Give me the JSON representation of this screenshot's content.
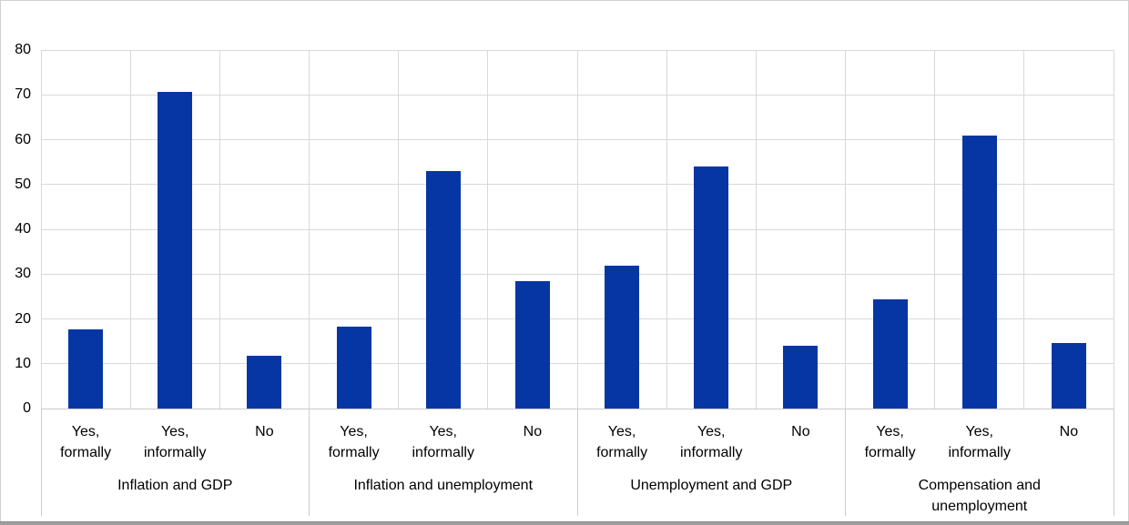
{
  "chart_data": {
    "type": "bar",
    "title": "",
    "legend": null,
    "grid": true,
    "ylim": [
      0,
      80
    ],
    "ytick_step": 10,
    "ytick_labels": [
      "0",
      "10",
      "20",
      "30",
      "40",
      "50",
      "60",
      "70",
      "80"
    ],
    "categories_per_group": [
      [
        "Yes,",
        "formally"
      ],
      [
        "Yes,",
        "informally"
      ],
      [
        "No"
      ]
    ],
    "groups": [
      {
        "label_lines": [
          "Inflation and GDP"
        ],
        "values": [
          17.6,
          70.6,
          11.8
        ]
      },
      {
        "label_lines": [
          "Inflation and unemployment"
        ],
        "values": [
          18.3,
          52.9,
          28.5
        ]
      },
      {
        "label_lines": [
          "Unemployment and GDP"
        ],
        "values": [
          31.9,
          54.1,
          14.0
        ]
      },
      {
        "label_lines": [
          "Compensation and",
          "unemployment"
        ],
        "values": [
          24.4,
          61.0,
          14.6
        ]
      }
    ],
    "colors": {
      "bar": "#0636a3",
      "gridline": "#d9d9d9",
      "axis_line": "#c9c9c9",
      "separator": "#cccccc",
      "text": "#000000",
      "chart_border": "#cfcfcf",
      "bottom_strip": "#9e9e9e",
      "background": "#ffffff"
    }
  }
}
